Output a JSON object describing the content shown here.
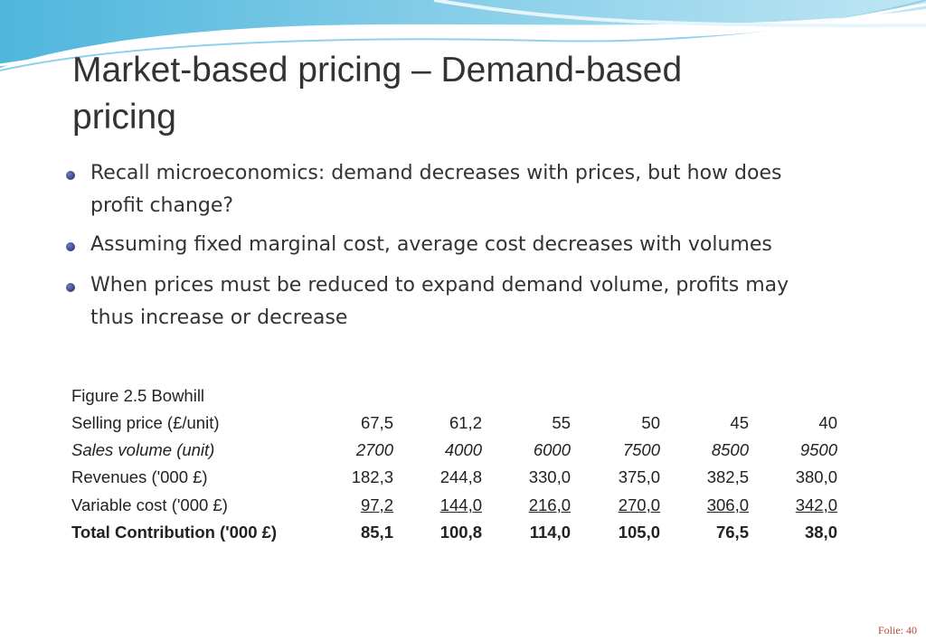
{
  "header": {
    "title_lines": [
      "Market-based pricing – Demand-based",
      "pricing"
    ]
  },
  "bullets": [
    [
      "Recall microeconomics:  demand decreases with prices, but how does",
      "profit change?"
    ],
    [
      "Assuming fixed marginal cost, average cost decreases with volumes"
    ],
    [
      "When prices must be reduced to expand demand volume, profits may",
      "thus increase or decrease"
    ]
  ],
  "table": {
    "caption": "Figure 2.5 Bowhill",
    "rows": [
      [
        "Selling price (£/unit)",
        "67,5",
        "61,2",
        "55",
        "50",
        "45",
        "40"
      ],
      [
        "Sales volume (unit)",
        "2700",
        "4000",
        "6000",
        "7500",
        "8500",
        "9500"
      ],
      [
        "Revenues ('000 £)",
        "182,3",
        "244,8",
        "330,0",
        "375,0",
        "382,5",
        "380,0"
      ],
      [
        "Variable cost ('000 £)",
        "97,2",
        "144,0",
        "216,0",
        "270,0",
        "306,0",
        "342,0"
      ],
      [
        "Total Contribution ('000 £)",
        "85,1",
        "100,8",
        "114,0",
        "105,0",
        "76,5",
        "38,0"
      ]
    ]
  },
  "footer": "Folie: 40"
}
